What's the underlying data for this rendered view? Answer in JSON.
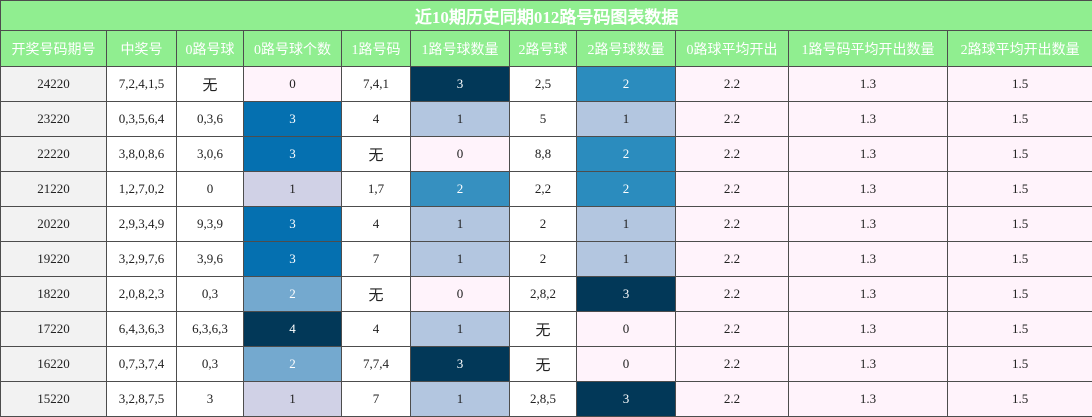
{
  "chart_data": {
    "type": "table",
    "title": "近10期历史同期012路号码图表数据",
    "columns": [
      "开奖号码期号",
      "中奖号",
      "0路号球",
      "0路号球个数",
      "1路号码",
      "1路号球数量",
      "2路号球",
      "2路号球数量",
      "0路球平均开出",
      "1路号码平均开出数量",
      "2路球平均开出数量"
    ],
    "rows": [
      [
        "24220",
        "7,2,4,1,5",
        "无",
        "0",
        "7,4,1",
        "3",
        "2,5",
        "2",
        "2.2",
        "1.3",
        "1.5"
      ],
      [
        "23220",
        "0,3,5,6,4",
        "0,3,6",
        "3",
        "4",
        "1",
        "5",
        "1",
        "2.2",
        "1.3",
        "1.5"
      ],
      [
        "22220",
        "3,8,0,8,6",
        "3,0,6",
        "3",
        "无",
        "0",
        "8,8",
        "2",
        "2.2",
        "1.3",
        "1.5"
      ],
      [
        "21220",
        "1,2,7,0,2",
        "0",
        "1",
        "1,7",
        "2",
        "2,2",
        "2",
        "2.2",
        "1.3",
        "1.5"
      ],
      [
        "20220",
        "2,9,3,4,9",
        "9,3,9",
        "3",
        "4",
        "1",
        "2",
        "1",
        "2.2",
        "1.3",
        "1.5"
      ],
      [
        "19220",
        "3,2,9,7,6",
        "3,9,6",
        "3",
        "7",
        "1",
        "2",
        "1",
        "2.2",
        "1.3",
        "1.5"
      ],
      [
        "18220",
        "2,0,8,2,3",
        "0,3",
        "2",
        "无",
        "0",
        "2,8,2",
        "3",
        "2.2",
        "1.3",
        "1.5"
      ],
      [
        "17220",
        "6,4,3,6,3",
        "6,3,6,3",
        "4",
        "4",
        "1",
        "无",
        "0",
        "2.2",
        "1.3",
        "1.5"
      ],
      [
        "16220",
        "0,7,3,7,4",
        "0,3",
        "2",
        "7,7,4",
        "3",
        "无",
        "0",
        "2.2",
        "1.3",
        "1.5"
      ],
      [
        "15220",
        "3,2,8,7,5",
        "3",
        "1",
        "7",
        "1",
        "2,8,5",
        "3",
        "2.2",
        "1.3",
        "1.5"
      ]
    ],
    "heatmap_colors": {
      "0": "#fff3fb",
      "1": "#d0d1e6",
      "2": "#74a9cf",
      "3": "#0570b0",
      "4": "#023858"
    },
    "count_colors_1": {
      "0": "#fff3fb",
      "1": "#b3c6e0",
      "2": "#3690c0",
      "3": "#023858"
    },
    "count_colors_2": {
      "0": "#fff3fb",
      "1": "#b3c6e0",
      "2": "#2b8cbe",
      "3": "#023858"
    },
    "header_color": "#90ee90"
  }
}
